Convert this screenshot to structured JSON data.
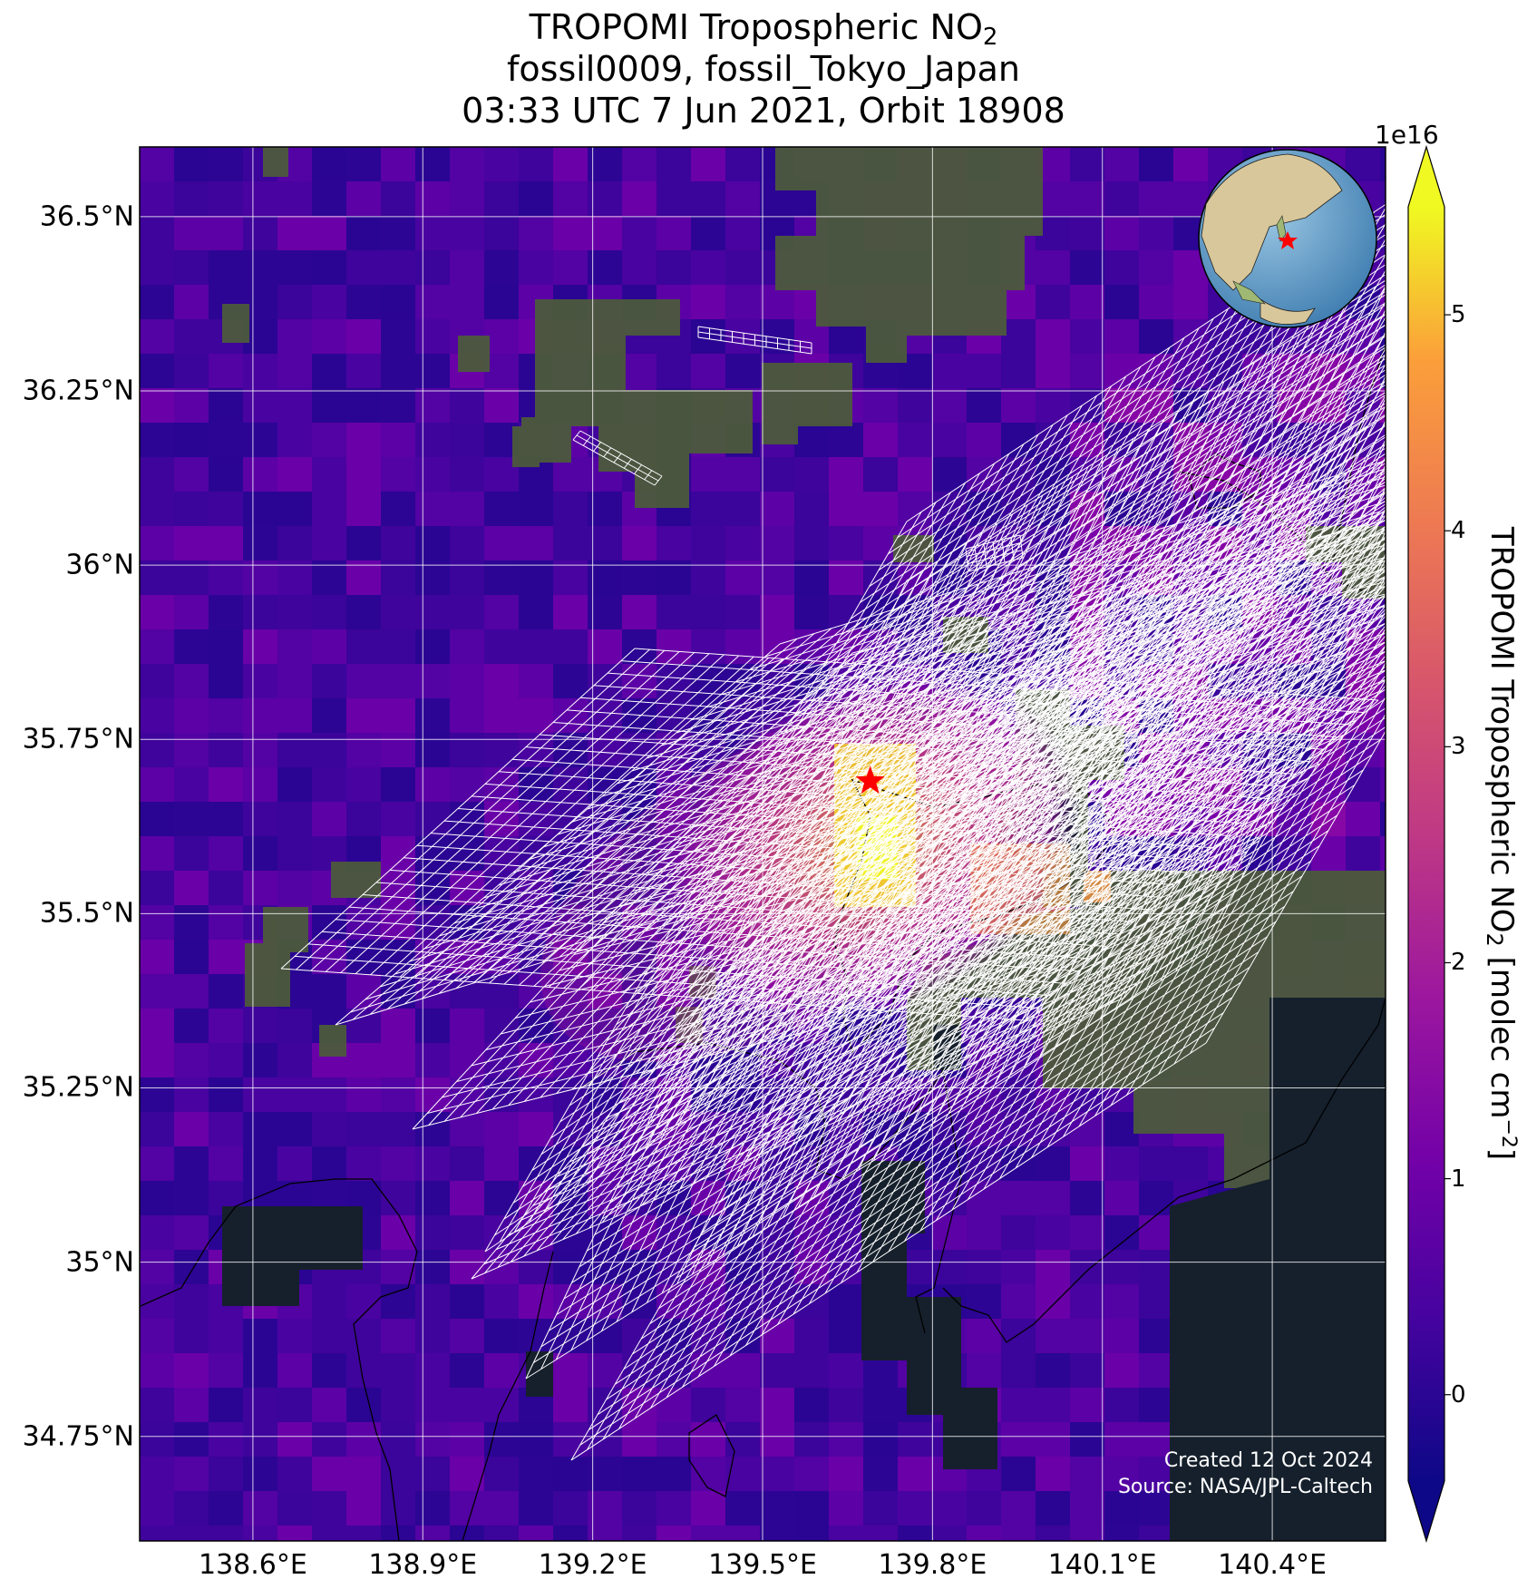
{
  "title": {
    "line1_text": "TROPOMI Tropospheric NO",
    "line1_sub": "2",
    "line2": "fossil0009, fossil_Tokyo_Japan",
    "line3": "03:33 UTC 7 Jun 2021, Orbit 18908"
  },
  "axes": {
    "lon_ticks": [
      "138.6°E",
      "138.9°E",
      "139.2°E",
      "139.5°E",
      "139.8°E",
      "140.1°E",
      "140.4°E"
    ],
    "lat_ticks": [
      "36.5°N",
      "36.25°N",
      "36°N",
      "35.75°N",
      "35.5°N",
      "35.25°N",
      "35°N",
      "34.75°N"
    ],
    "lon_values": [
      138.6,
      138.9,
      139.2,
      139.5,
      139.8,
      140.1,
      140.4
    ],
    "lat_values": [
      36.5,
      36.25,
      36.0,
      35.75,
      35.5,
      35.25,
      35.0,
      34.75
    ],
    "lon_range": [
      138.4,
      140.6
    ],
    "lat_range": [
      34.6,
      36.6
    ]
  },
  "colorbar": {
    "label_text": "TROPOMI Tropospheric NO",
    "label_sub": "2",
    "label_units": " [molec cm",
    "label_sup": "−2",
    "label_end": "]",
    "exponent": "1e16",
    "ticks": [
      "0",
      "1",
      "2",
      "3",
      "4",
      "5"
    ],
    "tick_values": [
      0,
      1,
      2,
      3,
      4,
      5
    ],
    "range": [
      -0.4,
      5.5
    ],
    "colormap": "plasma",
    "extend": "both"
  },
  "site": {
    "lon": 139.69,
    "lat": 35.69,
    "marker": "red-star"
  },
  "credit": {
    "created": "Created 12 Oct 2024",
    "source": "Source: NASA/JPL-Caltech"
  },
  "colors": {
    "star": "#ff0000",
    "grid": "#ffffff",
    "coast": "#000000",
    "background_low": "#3d049b",
    "peak": "#f0f921"
  }
}
